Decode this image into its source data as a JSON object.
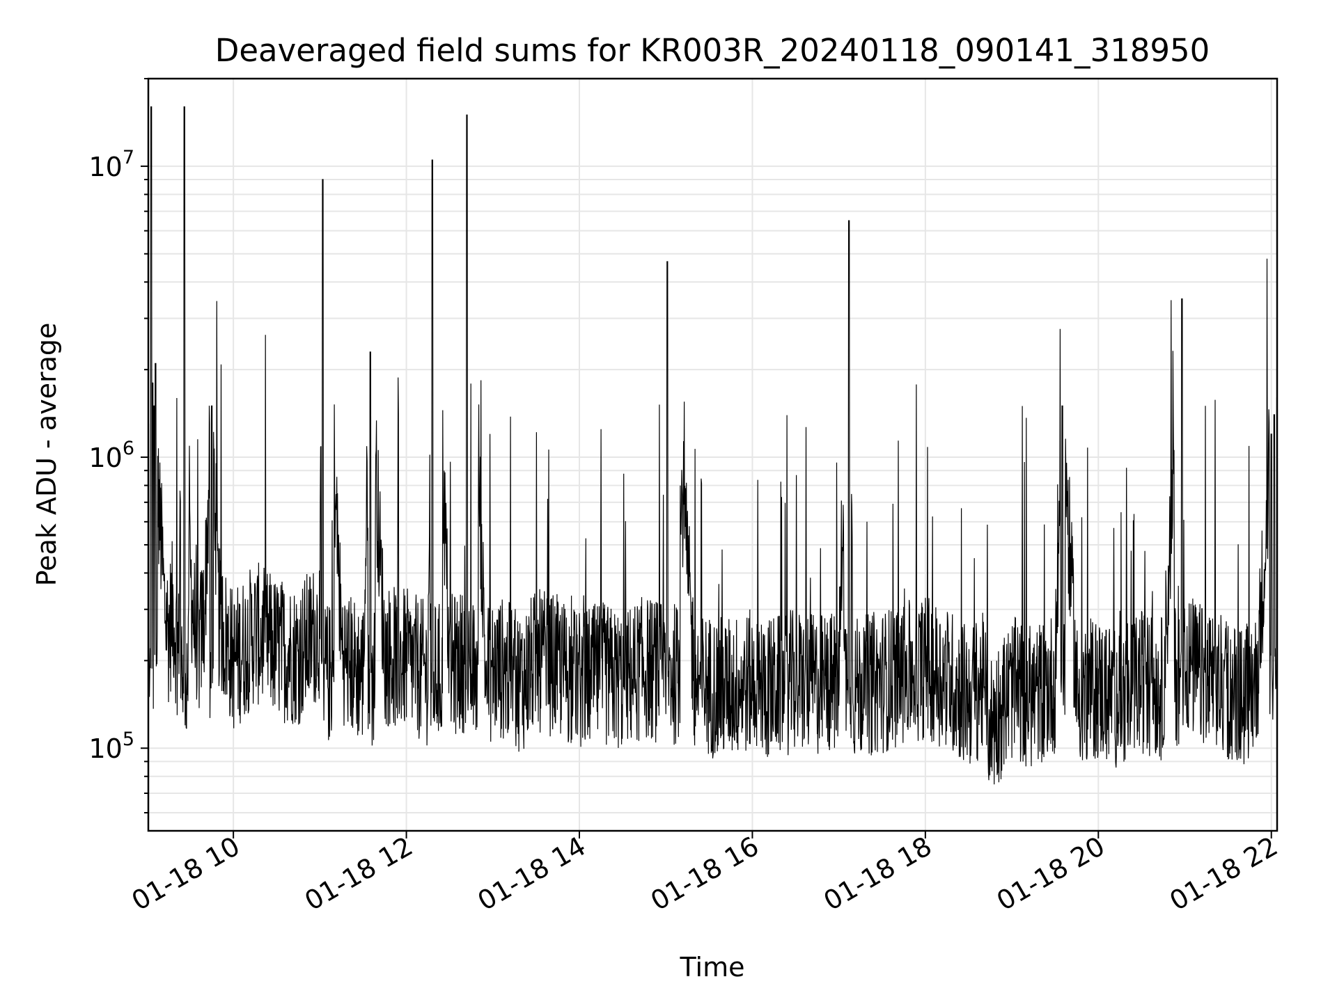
{
  "chart_data": {
    "type": "line",
    "title": "Deaveraged field sums for KR003R_20240118_090141_318950",
    "xlabel": "Time",
    "ylabel": "Peak ADU - average",
    "yscale": "log",
    "xlim": [
      "2024-01-18 09:01",
      "2024-01-18 22:04"
    ],
    "ylim": [
      52000,
      20000000
    ],
    "x_ticks": [
      "01-18 10",
      "01-18 12",
      "01-18 14",
      "01-18 16",
      "01-18 18",
      "01-18 20",
      "01-18 22"
    ],
    "y_ticks": [
      {
        "base": "10",
        "exp": "5"
      },
      {
        "base": "10",
        "exp": "6"
      },
      {
        "base": "10",
        "exp": "7"
      }
    ],
    "grid": true,
    "line_color": "#000000",
    "grid_color": "#e6e6e6",
    "series": [
      {
        "x": [
          "2024-01-18 09:01",
          "2024-01-18 09:03",
          "2024-01-18 09:04",
          "2024-01-18 09:05",
          "2024-01-18 09:06",
          "2024-01-18 09:08",
          "2024-01-18 09:10",
          "2024-01-18 09:12",
          "2024-01-18 09:15",
          "2024-01-18 09:18",
          "2024-01-18 09:22",
          "2024-01-18 09:26",
          "2024-01-18 09:30",
          "2024-01-18 09:35",
          "2024-01-18 09:40",
          "2024-01-18 09:45",
          "2024-01-18 09:50",
          "2024-01-18 10:00",
          "2024-01-18 10:15",
          "2024-01-18 10:30",
          "2024-01-18 10:45",
          "2024-01-18 11:00",
          "2024-01-18 11:02",
          "2024-01-18 11:15",
          "2024-01-18 11:18",
          "2024-01-18 11:30",
          "2024-01-18 11:35",
          "2024-01-18 11:45",
          "2024-01-18 12:00",
          "2024-01-18 12:15",
          "2024-01-18 12:18",
          "2024-01-18 12:30",
          "2024-01-18 12:40",
          "2024-01-18 12:42",
          "2024-01-18 12:55",
          "2024-01-18 13:05",
          "2024-01-18 13:20",
          "2024-01-18 13:30",
          "2024-01-18 13:45",
          "2024-01-18 14:00",
          "2024-01-18 14:15",
          "2024-01-18 14:30",
          "2024-01-18 14:45",
          "2024-01-18 15:00",
          "2024-01-18 15:01",
          "2024-01-18 15:20",
          "2024-01-18 15:40",
          "2024-01-18 16:00",
          "2024-01-18 16:10",
          "2024-01-18 16:30",
          "2024-01-18 16:45",
          "2024-01-18 17:00",
          "2024-01-18 17:07",
          "2024-01-18 17:10",
          "2024-01-18 17:30",
          "2024-01-18 17:45",
          "2024-01-18 18:00",
          "2024-01-18 18:15",
          "2024-01-18 18:30",
          "2024-01-18 18:40",
          "2024-01-18 18:45",
          "2024-01-18 19:00",
          "2024-01-18 19:15",
          "2024-01-18 19:30",
          "2024-01-18 19:35",
          "2024-01-18 19:45",
          "2024-01-18 20:00",
          "2024-01-18 20:15",
          "2024-01-18 20:30",
          "2024-01-18 20:45",
          "2024-01-18 20:58",
          "2024-01-18 21:00",
          "2024-01-18 21:15",
          "2024-01-18 21:30",
          "2024-01-18 21:40",
          "2024-01-18 21:50",
          "2024-01-18 21:55",
          "2024-01-18 22:00",
          "2024-01-18 22:02",
          "2024-01-18 22:04"
        ],
        "y": [
          1300000,
          16000000,
          1800000,
          1500000,
          2100000,
          700000,
          500000,
          320000,
          250000,
          300000,
          210000,
          16000000,
          400000,
          200000,
          300000,
          1500000,
          280000,
          200000,
          250000,
          220000,
          210000,
          260000,
          9000000,
          230000,
          200000,
          180000,
          2300000,
          210000,
          200000,
          180000,
          10500000,
          190000,
          200000,
          15000000,
          180000,
          190000,
          170000,
          200000,
          190000,
          170000,
          180000,
          170000,
          190000,
          180000,
          4700000,
          170000,
          160000,
          170000,
          160000,
          170000,
          165000,
          170000,
          6500000,
          160000,
          170000,
          180000,
          190000,
          175000,
          150000,
          165000,
          120000,
          160000,
          150000,
          170000,
          1500000,
          155000,
          160000,
          150000,
          170000,
          160000,
          3500000,
          200000,
          170000,
          160000,
          150000,
          170000,
          450000,
          1200000,
          1400000,
          1600000
        ]
      }
    ]
  }
}
